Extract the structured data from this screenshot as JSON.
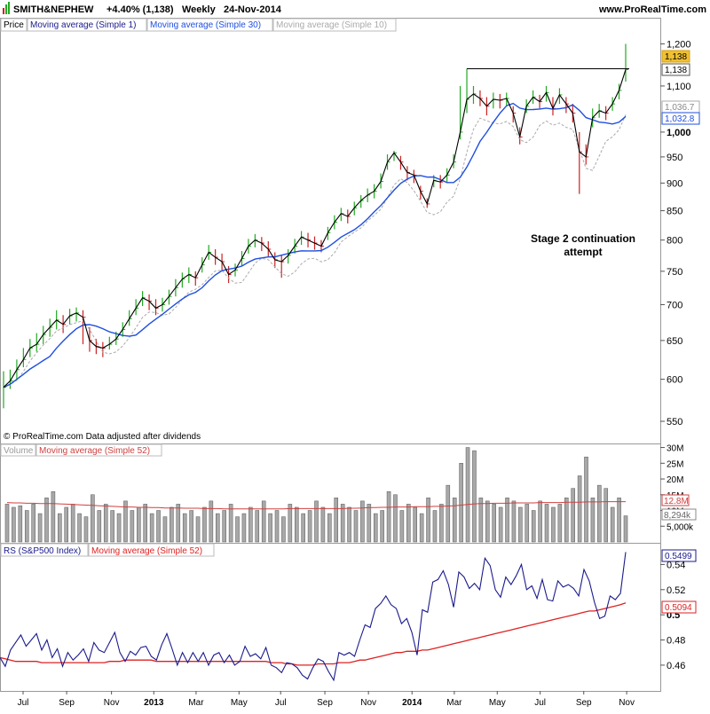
{
  "header": {
    "symbol": "SMITH&NEPHEW",
    "change": "+4.40% (1,138)",
    "period": "Weekly",
    "date": "24-Nov-2014",
    "site": "www.ProRealTime.com"
  },
  "colors": {
    "up_bar": "#22aa22",
    "down_bar": "#cc2222",
    "ma_fast": "#000000",
    "ma_30": "#1f4fe0",
    "ma_10": "#aaaaaa",
    "volume_bar": "#a8a8a8",
    "volume_ma": "#d04040",
    "rs_line": "#1a1a8c",
    "rs_ma": "#dd2222",
    "price_tag": "#f0c030"
  },
  "legend": {
    "price": "Price",
    "ma1": "Moving average (Simple 1)",
    "ma30": "Moving average (Simple 30)",
    "ma10": "Moving average (Simple 10)",
    "volume": "Volume",
    "volume_ma": "Moving average (Simple 52)",
    "rs": "RS (S&P500 Index)",
    "rs_ma": "Moving average (Simple 52)"
  },
  "copyright": "© ProRealTime.com  Data adjusted after dividends",
  "annotation": {
    "line1": "Stage 2 continuation",
    "line2": "attempt"
  },
  "price_tags": {
    "last": "1,138",
    "last_outline": "1,138",
    "ma10": "1,036.7",
    "ma30": "1,032.8"
  },
  "volume_tags": {
    "ma": "12.8M",
    "last": "8,294k"
  },
  "rs_tags": {
    "last": "0.5499",
    "ma": "0.5094"
  },
  "chart_data": [
    {
      "type": "line",
      "panel": "price",
      "yscale": "log",
      "ylim": [
        545,
        1230
      ],
      "yticks": [
        {
          "value": 550,
          "label": "550"
        },
        {
          "value": 600,
          "label": "600"
        },
        {
          "value": 650,
          "label": "650"
        },
        {
          "value": 700,
          "label": "700"
        },
        {
          "value": 750,
          "label": "750"
        },
        {
          "value": 800,
          "label": "800"
        },
        {
          "value": 850,
          "label": "850"
        },
        {
          "value": 900,
          "label": "900"
        },
        {
          "value": 950,
          "label": "950"
        },
        {
          "value": 1000,
          "label": "1,000"
        },
        {
          "value": 1100,
          "label": "1,100"
        },
        {
          "value": 1200,
          "label": "1,200"
        }
      ],
      "closes": [
        590,
        598,
        612,
        625,
        640,
        645,
        658,
        668,
        678,
        672,
        684,
        688,
        682,
        650,
        642,
        640,
        645,
        652,
        665,
        680,
        695,
        710,
        705,
        695,
        700,
        712,
        725,
        738,
        745,
        740,
        760,
        780,
        772,
        765,
        745,
        752,
        770,
        790,
        800,
        795,
        785,
        768,
        765,
        775,
        790,
        805,
        800,
        795,
        790,
        812,
        830,
        845,
        840,
        855,
        868,
        878,
        885,
        903,
        940,
        958,
        940,
        920,
        915,
        885,
        862,
        905,
        902,
        915,
        940,
        1000,
        1070,
        1082,
        1072,
        1055,
        1070,
        1068,
        1072,
        1040,
        990,
        1055,
        1075,
        1065,
        1085,
        1050,
        1080,
        1060,
        1040,
        960,
        950,
        1030,
        1045,
        1040,
        1060,
        1090,
        1138
      ],
      "highs": [
        610,
        612,
        625,
        640,
        652,
        660,
        670,
        680,
        692,
        685,
        694,
        696,
        692,
        668,
        652,
        648,
        655,
        662,
        675,
        692,
        708,
        720,
        715,
        708,
        710,
        722,
        738,
        748,
        756,
        750,
        772,
        792,
        785,
        778,
        758,
        762,
        782,
        802,
        810,
        805,
        798,
        780,
        776,
        785,
        802,
        815,
        812,
        806,
        800,
        822,
        842,
        855,
        852,
        866,
        878,
        890,
        898,
        918,
        955,
        962,
        952,
        932,
        925,
        895,
        872,
        915,
        915,
        928,
        955,
        1100,
        1140,
        1100,
        1090,
        1075,
        1085,
        1082,
        1085,
        1055,
        1010,
        1070,
        1090,
        1080,
        1100,
        1075,
        1095,
        1075,
        1060,
        1000,
        975,
        1050,
        1060,
        1055,
        1075,
        1105,
        1200
      ],
      "lows": [
        565,
        588,
        600,
        615,
        628,
        635,
        645,
        655,
        665,
        660,
        672,
        676,
        645,
        635,
        632,
        628,
        638,
        644,
        655,
        670,
        685,
        698,
        692,
        685,
        690,
        700,
        712,
        725,
        732,
        728,
        748,
        768,
        760,
        752,
        732,
        742,
        758,
        778,
        788,
        782,
        772,
        755,
        740,
        762,
        778,
        792,
        788,
        784,
        780,
        800,
        818,
        832,
        828,
        842,
        855,
        865,
        872,
        890,
        925,
        942,
        925,
        905,
        900,
        870,
        855,
        892,
        890,
        902,
        928,
        985,
        1040,
        1060,
        1055,
        1035,
        1050,
        1050,
        1055,
        1020,
        975,
        1040,
        1060,
        1050,
        1065,
        1035,
        1060,
        1040,
        1020,
        880,
        935,
        1010,
        1030,
        1025,
        1045,
        1070,
        1110
      ],
      "resistance": 1140,
      "ma30_last": 1032.8,
      "ma10_last": 1036.7
    },
    {
      "type": "bar",
      "panel": "volume",
      "ylim": [
        0,
        31
      ],
      "yticks": [
        {
          "value": 5,
          "label": "5,000k"
        },
        {
          "value": 10,
          "label": "10M"
        },
        {
          "value": 15,
          "label": "15M"
        },
        {
          "value": 20,
          "label": "20M"
        },
        {
          "value": 25,
          "label": "25M"
        },
        {
          "value": 30,
          "label": "30M"
        }
      ],
      "values": [
        12,
        11,
        11.5,
        10,
        12,
        9,
        14,
        16,
        9,
        11,
        12,
        9,
        8,
        15,
        10,
        12,
        10,
        9,
        13,
        10,
        11,
        12,
        9,
        10,
        8,
        11,
        12,
        9,
        10,
        8,
        11,
        13,
        9,
        10,
        12,
        8,
        9,
        11,
        10,
        13,
        9,
        10,
        8,
        12,
        11,
        9,
        10,
        13,
        11,
        9,
        14,
        12,
        11,
        10,
        13,
        12,
        9,
        10,
        16,
        15,
        10,
        12,
        11,
        9,
        14,
        10,
        12,
        18,
        14,
        25,
        30,
        29,
        14,
        13,
        12,
        11,
        14,
        13,
        11,
        12,
        10,
        13,
        12,
        11,
        12,
        14,
        17,
        21,
        27,
        14,
        18,
        17,
        11,
        14,
        8.294
      ],
      "ma": [
        12.5,
        12.4,
        12.4,
        12.3,
        12.3,
        12.2,
        12.2,
        12.2,
        12.1,
        12.0,
        11.9,
        11.8,
        11.7,
        11.6,
        11.5,
        11.4,
        11.3,
        11.2,
        11.1,
        11.1,
        11.0,
        11.0,
        10.9,
        10.9,
        10.8,
        10.8,
        10.8,
        10.7,
        10.7,
        10.7,
        10.6,
        10.6,
        10.6,
        10.5,
        10.5,
        10.5,
        10.5,
        10.5,
        10.5,
        10.5,
        10.5,
        10.5,
        10.5,
        10.6,
        10.6,
        10.6,
        10.6,
        10.6,
        10.6,
        10.6,
        10.6,
        10.6,
        10.7,
        10.7,
        10.8,
        10.9,
        10.9,
        11.0,
        11.0,
        11.1,
        11.1,
        11.1,
        11.2,
        11.2,
        11.2,
        11.3,
        11.3,
        11.4,
        11.5,
        11.7,
        11.9,
        12.1,
        12.2,
        12.2,
        12.3,
        12.3,
        12.3,
        12.4,
        12.4,
        12.4,
        12.4,
        12.5,
        12.5,
        12.5,
        12.5,
        12.6,
        12.6,
        12.6,
        12.7,
        12.7,
        12.7,
        12.8,
        12.8,
        12.8,
        12.8
      ]
    },
    {
      "type": "line",
      "panel": "rs",
      "ylim": [
        0.4395,
        0.5565
      ],
      "yticks": [
        {
          "value": 0.46,
          "label": "0.46"
        },
        {
          "value": 0.48,
          "label": "0.48"
        },
        {
          "value": 0.5,
          "label": "0.5"
        },
        {
          "value": 0.52,
          "label": "0.52"
        },
        {
          "value": 0.54,
          "label": "0.54"
        }
      ],
      "values": [
        0.466,
        0.459,
        0.472,
        0.478,
        0.484,
        0.475,
        0.48,
        0.485,
        0.472,
        0.48,
        0.466,
        0.473,
        0.459,
        0.47,
        0.464,
        0.468,
        0.473,
        0.463,
        0.478,
        0.472,
        0.47,
        0.478,
        0.486,
        0.47,
        0.463,
        0.471,
        0.468,
        0.474,
        0.475,
        0.467,
        0.464,
        0.476,
        0.485,
        0.473,
        0.46,
        0.47,
        0.462,
        0.47,
        0.463,
        0.47,
        0.46,
        0.468,
        0.47,
        0.462,
        0.468,
        0.46,
        0.463,
        0.475,
        0.467,
        0.469,
        0.465,
        0.474,
        0.46,
        0.458,
        0.454,
        0.462,
        0.461,
        0.458,
        0.452,
        0.449,
        0.458,
        0.465,
        0.463,
        0.455,
        0.448,
        0.47,
        0.468,
        0.47,
        0.467,
        0.48,
        0.492,
        0.49,
        0.505,
        0.509,
        0.515,
        0.508,
        0.505,
        0.493,
        0.497,
        0.486,
        0.468,
        0.504,
        0.502,
        0.526,
        0.528,
        0.535,
        0.524,
        0.506,
        0.534,
        0.53,
        0.521,
        0.525,
        0.52,
        0.545,
        0.539,
        0.52,
        0.514,
        0.53,
        0.524,
        0.531,
        0.54,
        0.52,
        0.523,
        0.513,
        0.528,
        0.512,
        0.511,
        0.527,
        0.522,
        0.524,
        0.521,
        0.515,
        0.536,
        0.527,
        0.51,
        0.497,
        0.499,
        0.515,
        0.512,
        0.517,
        0.5499
      ],
      "ma": [
        0.466,
        0.465,
        0.464,
        0.463,
        0.463,
        0.463,
        0.463,
        0.463,
        0.462,
        0.462,
        0.462,
        0.462,
        0.462,
        0.462,
        0.462,
        0.462,
        0.462,
        0.462,
        0.462,
        0.462,
        0.462,
        0.463,
        0.463,
        0.463,
        0.464,
        0.464,
        0.464,
        0.464,
        0.464,
        0.464,
        0.463,
        0.463,
        0.463,
        0.463,
        0.463,
        0.463,
        0.463,
        0.463,
        0.463,
        0.463,
        0.463,
        0.463,
        0.463,
        0.463,
        0.463,
        0.463,
        0.463,
        0.463,
        0.463,
        0.463,
        0.463,
        0.463,
        0.462,
        0.462,
        0.462,
        0.461,
        0.461,
        0.46,
        0.46,
        0.46,
        0.46,
        0.461,
        0.461,
        0.461,
        0.461,
        0.462,
        0.462,
        0.462,
        0.463,
        0.464,
        0.464,
        0.465,
        0.466,
        0.467,
        0.468,
        0.469,
        0.47,
        0.47,
        0.471,
        0.471,
        0.471,
        0.472,
        0.472,
        0.473,
        0.474,
        0.475,
        0.476,
        0.477,
        0.478,
        0.479,
        0.48,
        0.481,
        0.482,
        0.483,
        0.484,
        0.485,
        0.486,
        0.487,
        0.488,
        0.489,
        0.49,
        0.491,
        0.492,
        0.493,
        0.494,
        0.495,
        0.496,
        0.497,
        0.498,
        0.499,
        0.5,
        0.501,
        0.502,
        0.503,
        0.503,
        0.504,
        0.505,
        0.506,
        0.507,
        0.508,
        0.5094
      ]
    }
  ],
  "x_axis": {
    "labels": [
      {
        "text": "Jul",
        "frac": 0.036,
        "bold": false
      },
      {
        "text": "Sep",
        "frac": 0.104,
        "bold": false
      },
      {
        "text": "Nov",
        "frac": 0.174,
        "bold": false
      },
      {
        "text": "2013",
        "frac": 0.24,
        "bold": true
      },
      {
        "text": "Mar",
        "frac": 0.306,
        "bold": false
      },
      {
        "text": "May",
        "frac": 0.373,
        "bold": false
      },
      {
        "text": "Jul",
        "frac": 0.438,
        "bold": false
      },
      {
        "text": "Sep",
        "frac": 0.507,
        "bold": false
      },
      {
        "text": "Nov",
        "frac": 0.575,
        "bold": false
      },
      {
        "text": "2014",
        "frac": 0.643,
        "bold": true
      },
      {
        "text": "Mar",
        "frac": 0.709,
        "bold": false
      },
      {
        "text": "May",
        "frac": 0.776,
        "bold": false
      },
      {
        "text": "Jul",
        "frac": 0.843,
        "bold": false
      },
      {
        "text": "Sep",
        "frac": 0.911,
        "bold": false
      },
      {
        "text": "Nov",
        "frac": 0.978,
        "bold": false
      }
    ]
  }
}
